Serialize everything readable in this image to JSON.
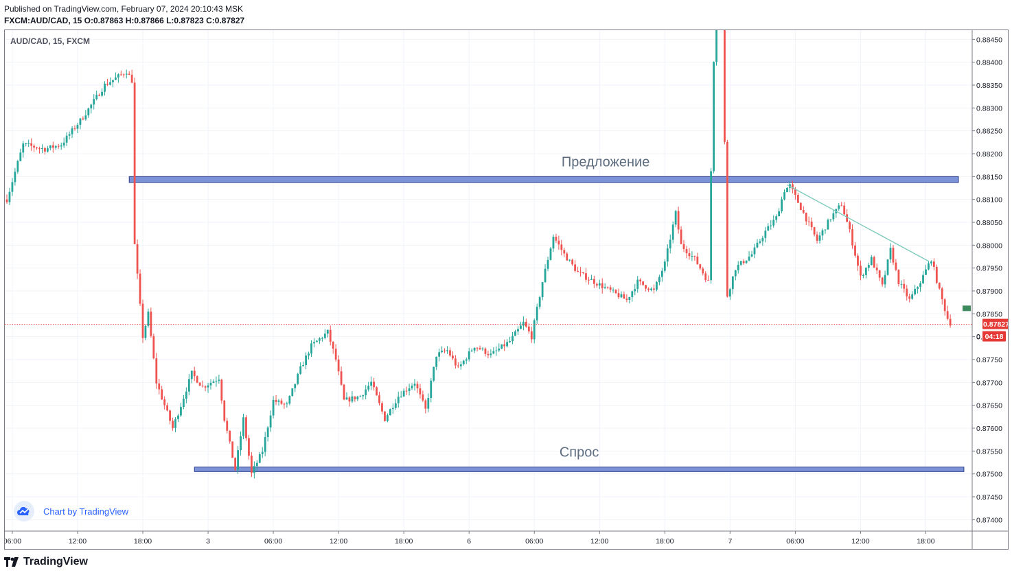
{
  "header": {
    "published": "Published on TradingView.com, February 07, 2024 20:10:43 MSK",
    "symbol_line": "FXCM:AUD/CAD, 15  O:0.87863 H:0.87866 L:0.87823 C:0.87827"
  },
  "chart_symbol": "AUD/CAD, 15, FXCM",
  "watermark": "Chart by TradingView",
  "footer_brand": "TradingView",
  "colors": {
    "up": "#26a69a",
    "down": "#ef5350",
    "zone_fill": "#7b93d6",
    "zone_border": "#2c3e8c",
    "trendline": "#7fcbbb",
    "price_line": "#e53935"
  },
  "chart_data": {
    "type": "candlestick",
    "timeframe": "15",
    "ylim": [
      0.87375,
      0.8847
    ],
    "yticks": [
      "0.88450",
      "0.88400",
      "0.88350",
      "0.88300",
      "0.88250",
      "0.88200",
      "0.88150",
      "0.88100",
      "0.88050",
      "0.88000",
      "0.87950",
      "0.87900",
      "0.87850",
      "0.87800",
      "0.87750",
      "0.87700",
      "0.87650",
      "0.87600",
      "0.87550",
      "0.87500",
      "0.87450",
      "0.87400"
    ],
    "xticks": [
      {
        "bar": 2,
        "label": "06:00"
      },
      {
        "bar": 26,
        "label": "12:00"
      },
      {
        "bar": 50,
        "label": "18:00"
      },
      {
        "bar": 74,
        "label": "3"
      },
      {
        "bar": 98,
        "label": "06:00"
      },
      {
        "bar": 122,
        "label": "12:00"
      },
      {
        "bar": 146,
        "label": "18:00"
      },
      {
        "bar": 170,
        "label": "6"
      },
      {
        "bar": 194,
        "label": "06:00"
      },
      {
        "bar": 218,
        "label": "12:00"
      },
      {
        "bar": 242,
        "label": "18:00"
      },
      {
        "bar": 266,
        "label": "7"
      },
      {
        "bar": 290,
        "label": "06:00"
      },
      {
        "bar": 314,
        "label": "12:00"
      },
      {
        "bar": 338,
        "label": "18:00"
      }
    ],
    "waypoints": [
      [
        0,
        0.881
      ],
      [
        6,
        0.8822
      ],
      [
        14,
        0.8821
      ],
      [
        20,
        0.8822
      ],
      [
        28,
        0.8828
      ],
      [
        36,
        0.8835
      ],
      [
        44,
        0.8838
      ],
      [
        46,
        0.8836
      ],
      [
        47,
        0.88
      ],
      [
        50,
        0.878
      ],
      [
        52,
        0.8785
      ],
      [
        55,
        0.877
      ],
      [
        58,
        0.8765
      ],
      [
        61,
        0.876
      ],
      [
        64,
        0.8765
      ],
      [
        68,
        0.8772
      ],
      [
        72,
        0.8769
      ],
      [
        78,
        0.8771
      ],
      [
        80,
        0.8762
      ],
      [
        84,
        0.8751
      ],
      [
        87,
        0.8762
      ],
      [
        90,
        0.875
      ],
      [
        94,
        0.8755
      ],
      [
        98,
        0.8766
      ],
      [
        103,
        0.8765
      ],
      [
        108,
        0.8773
      ],
      [
        112,
        0.8778
      ],
      [
        118,
        0.8781
      ],
      [
        121,
        0.8775
      ],
      [
        124,
        0.8766
      ],
      [
        130,
        0.8767
      ],
      [
        134,
        0.877
      ],
      [
        139,
        0.8762
      ],
      [
        144,
        0.8767
      ],
      [
        150,
        0.877
      ],
      [
        154,
        0.8764
      ],
      [
        158,
        0.8776
      ],
      [
        162,
        0.8777
      ],
      [
        166,
        0.8773
      ],
      [
        172,
        0.8778
      ],
      [
        178,
        0.8776
      ],
      [
        185,
        0.8779
      ],
      [
        190,
        0.8783
      ],
      [
        193,
        0.878
      ],
      [
        197,
        0.8792
      ],
      [
        201,
        0.8802
      ],
      [
        205,
        0.8798
      ],
      [
        210,
        0.8794
      ],
      [
        216,
        0.8792
      ],
      [
        222,
        0.879
      ],
      [
        228,
        0.8788
      ],
      [
        232,
        0.8792
      ],
      [
        238,
        0.879
      ],
      [
        242,
        0.8796
      ],
      [
        246,
        0.8807
      ],
      [
        248,
        0.88
      ],
      [
        253,
        0.8797
      ],
      [
        258,
        0.8792
      ],
      [
        262,
        0.8889
      ],
      [
        265,
        0.8789
      ],
      [
        268,
        0.8795
      ],
      [
        274,
        0.8798
      ],
      [
        279,
        0.8803
      ],
      [
        283,
        0.8806
      ],
      [
        286,
        0.8812
      ],
      [
        288,
        0.8813
      ],
      [
        293,
        0.8807
      ],
      [
        298,
        0.8801
      ],
      [
        303,
        0.8806
      ],
      [
        307,
        0.8809
      ],
      [
        310,
        0.8803
      ],
      [
        314,
        0.8793
      ],
      [
        318,
        0.8797
      ],
      [
        322,
        0.8791
      ],
      [
        325,
        0.8799
      ],
      [
        328,
        0.8792
      ],
      [
        332,
        0.8788
      ],
      [
        336,
        0.8792
      ],
      [
        340,
        0.8797
      ],
      [
        343,
        0.879
      ],
      [
        346,
        0.8784
      ],
      [
        347,
        0.8783
      ]
    ],
    "last_price": "0.87827",
    "countdown": "04:18",
    "price_axis_hint": "0",
    "zones": [
      {
        "label": "Предложение",
        "top": 0.8815,
        "bottom": 0.88137,
        "bar_start": 45,
        "bar_end": 350
      },
      {
        "label": "Спрос",
        "top": 0.87515,
        "bottom": 0.87505,
        "bar_start": 69,
        "bar_end": 352
      }
    ],
    "trendline": {
      "from": {
        "bar": 287,
        "price": 0.88132
      },
      "to": {
        "bar": 339,
        "price": 0.87965
      }
    }
  }
}
